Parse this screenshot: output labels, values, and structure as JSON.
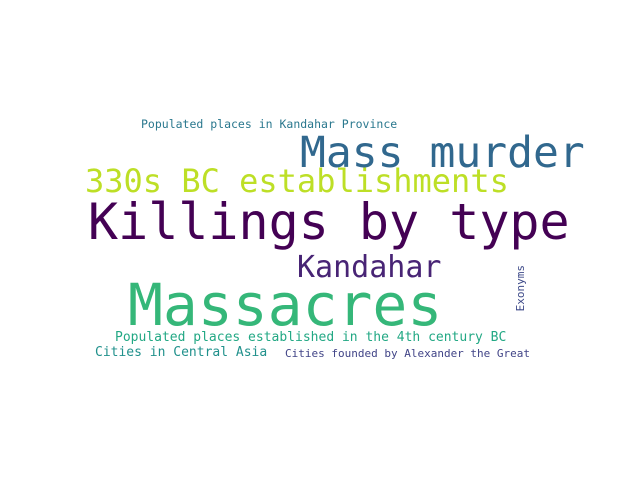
{
  "word_cloud": {
    "words": [
      {
        "text": "Populated places in Kandahar Province",
        "color": "#2a788e"
      },
      {
        "text": "Mass murder",
        "color": "#31688e"
      },
      {
        "text": "330s BC establishments",
        "color": "#bddf26"
      },
      {
        "text": "Killings by type",
        "color": "#440154"
      },
      {
        "text": "Kandahar",
        "color": "#482475"
      },
      {
        "text": "Massacres",
        "color": "#35b779"
      },
      {
        "text": "Exonyms",
        "color": "#3e4a89"
      },
      {
        "text": "Populated places established in the 4th century BC",
        "color": "#22a884"
      },
      {
        "text": "Cities in Central Asia",
        "color": "#21918c"
      },
      {
        "text": "Cities founded by Alexander the Great",
        "color": "#414487"
      }
    ]
  }
}
